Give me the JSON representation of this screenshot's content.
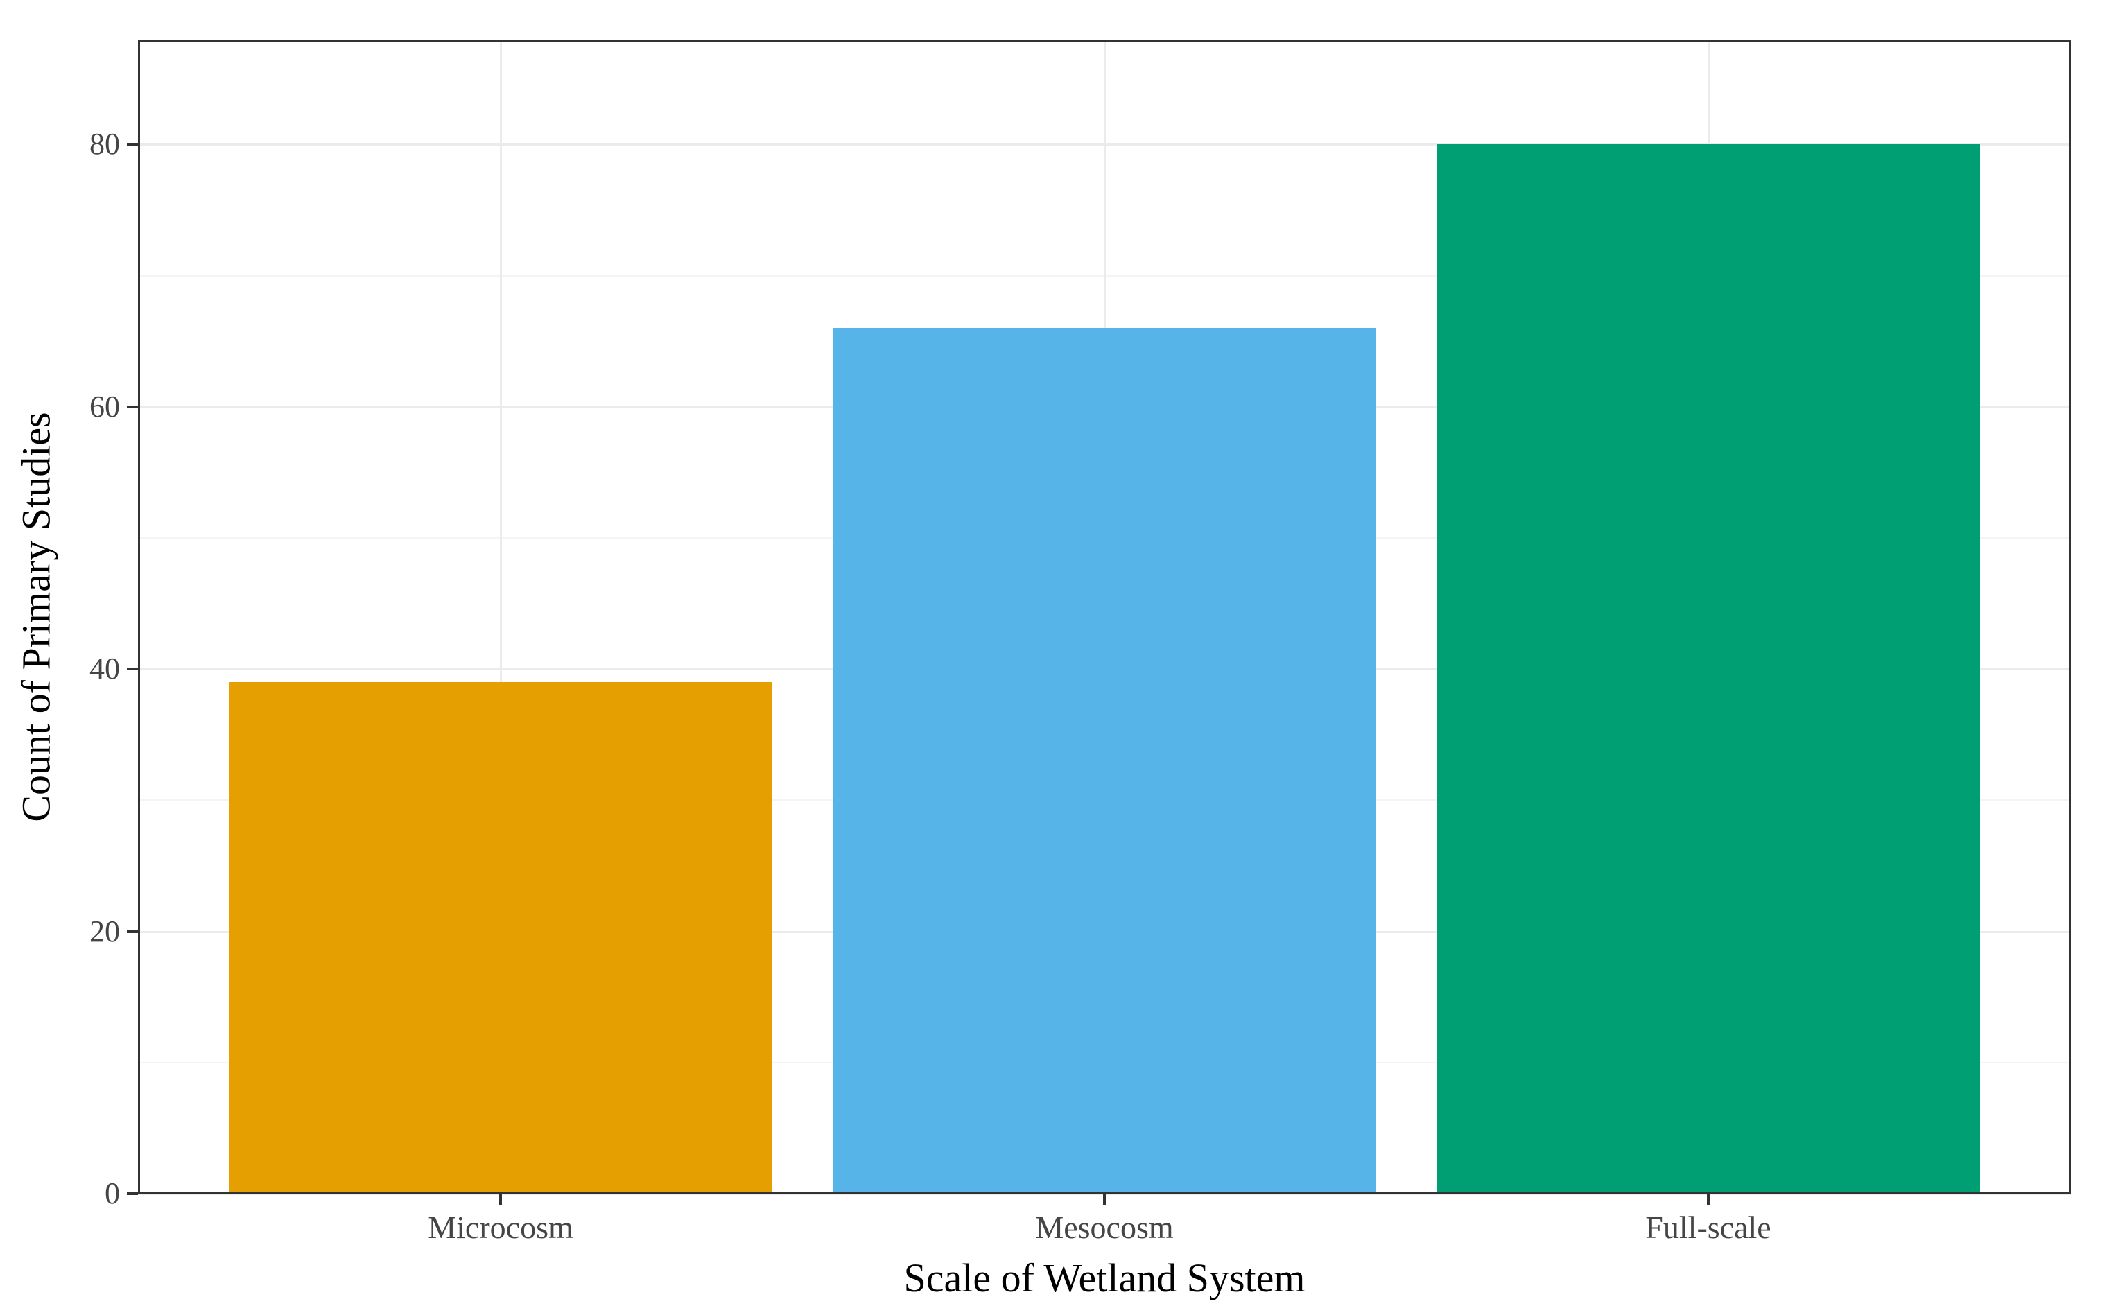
{
  "chart_data": {
    "type": "bar",
    "title": "",
    "categories": [
      "Microcosm",
      "Mesocosm",
      "Full-scale"
    ],
    "values": [
      39,
      66,
      80
    ],
    "series": [
      {
        "name": "Count of Primary Studies",
        "values": [
          39,
          66,
          80
        ]
      }
    ],
    "bar_colors": [
      "#E69F00",
      "#56B4E9",
      "#009E73"
    ],
    "xlabel": "Scale of Wetland System",
    "ylabel": "Count of Primary Studies",
    "y_ticks": [
      0,
      20,
      40,
      60,
      80
    ],
    "y_minor_ticks": [
      10,
      30,
      50,
      70
    ],
    "ylim": [
      0,
      88
    ],
    "bar_width_fraction": 0.9,
    "grid": "horizontal major and minor, vertical major at category centers",
    "legend": "none",
    "colors": {
      "background": "#FFFFFF",
      "panel_border": "#333333",
      "major_grid": "#EBEBEB",
      "minor_grid": "#F4F4F4",
      "tick_mark": "#333333",
      "tick_label": "#454545",
      "axis_title": "#000000"
    }
  }
}
